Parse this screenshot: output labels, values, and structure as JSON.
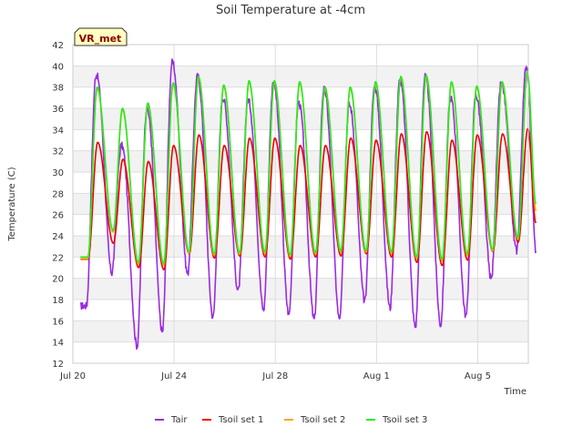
{
  "chart_data": {
    "type": "line",
    "title": "Soil Temperature at -4cm",
    "badge": "VR_met",
    "xlabel": "Time",
    "ylabel": "Temperature (C)",
    "ylim": [
      12,
      42
    ],
    "yticks": [
      12,
      14,
      16,
      18,
      20,
      22,
      24,
      26,
      28,
      30,
      32,
      34,
      36,
      38,
      40,
      42
    ],
    "xlim_days": [
      0,
      18
    ],
    "xticks": [
      {
        "day": 0,
        "label": "Jul 20"
      },
      {
        "day": 4,
        "label": "Jul 24"
      },
      {
        "day": 8,
        "label": "Jul 28"
      },
      {
        "day": 12,
        "label": "Aug 1"
      },
      {
        "day": 16,
        "label": "Aug 5"
      }
    ],
    "grid": true,
    "legend_position": "bottom",
    "start_day": 0.3,
    "days": [
      {
        "max": 39.2,
        "min": 17.4,
        "s_max": 32.8,
        "s_min": 21.8,
        "g_max": 38.0,
        "g_min": 22.0
      },
      {
        "max": 32.5,
        "min": 20.5,
        "s_max": 31.2,
        "s_min": 23.3,
        "g_max": 36.0,
        "g_min": 24.5
      },
      {
        "max": 36.0,
        "min": 13.6,
        "s_max": 31.0,
        "s_min": 21.0,
        "g_max": 36.5,
        "g_min": 21.5
      },
      {
        "max": 40.3,
        "min": 14.9,
        "s_max": 32.5,
        "s_min": 20.8,
        "g_max": 38.4,
        "g_min": 21.4
      },
      {
        "max": 39.0,
        "min": 20.4,
        "s_max": 33.5,
        "s_min": 22.3,
        "g_max": 39.0,
        "g_min": 22.5
      },
      {
        "max": 37.0,
        "min": 16.3,
        "s_max": 32.5,
        "s_min": 21.9,
        "g_max": 38.2,
        "g_min": 22.3
      },
      {
        "max": 36.8,
        "min": 18.8,
        "s_max": 33.2,
        "s_min": 22.1,
        "g_max": 38.6,
        "g_min": 22.4
      },
      {
        "max": 38.4,
        "min": 17.0,
        "s_max": 33.2,
        "s_min": 22.0,
        "g_max": 38.6,
        "g_min": 22.5
      },
      {
        "max": 36.5,
        "min": 16.6,
        "s_max": 32.5,
        "s_min": 21.8,
        "g_max": 38.5,
        "g_min": 22.2
      },
      {
        "max": 37.8,
        "min": 16.1,
        "s_max": 32.5,
        "s_min": 22.0,
        "g_max": 38.0,
        "g_min": 22.4
      },
      {
        "max": 36.3,
        "min": 16.4,
        "s_max": 33.2,
        "s_min": 22.1,
        "g_max": 38.0,
        "g_min": 22.6
      },
      {
        "max": 38.0,
        "min": 17.8,
        "s_max": 33.0,
        "s_min": 22.3,
        "g_max": 38.5,
        "g_min": 22.6
      },
      {
        "max": 38.6,
        "min": 17.2,
        "s_max": 33.6,
        "s_min": 22.0,
        "g_max": 39.0,
        "g_min": 22.5
      },
      {
        "max": 39.0,
        "min": 15.4,
        "s_max": 33.8,
        "s_min": 21.5,
        "g_max": 39.1,
        "g_min": 22.0
      },
      {
        "max": 37.0,
        "min": 15.6,
        "s_max": 33.0,
        "s_min": 21.2,
        "g_max": 38.5,
        "g_min": 21.8
      },
      {
        "max": 37.2,
        "min": 16.4,
        "s_max": 33.5,
        "s_min": 21.7,
        "g_max": 38.1,
        "g_min": 22.3
      },
      {
        "max": 38.3,
        "min": 19.9,
        "s_max": 33.6,
        "s_min": 22.5,
        "g_max": 38.5,
        "g_min": 22.7
      },
      {
        "max": 40.0,
        "min": 22.6,
        "s_max": 34.1,
        "s_min": 23.4,
        "g_max": 39.5,
        "g_min": 23.8
      }
    ],
    "end_values": {
      "Tair": 22.6,
      "Tsoil set 1": 25.2,
      "Tsoil set 2": 26.5,
      "Tsoil set 3": 27.0
    },
    "series": [
      {
        "name": "Tair",
        "color": "#9a2be2"
      },
      {
        "name": "Tsoil set 1",
        "color": "#ee0000"
      },
      {
        "name": "Tsoil set 2",
        "color": "#ffa500"
      },
      {
        "name": "Tsoil set 3",
        "color": "#22ee22"
      }
    ]
  }
}
